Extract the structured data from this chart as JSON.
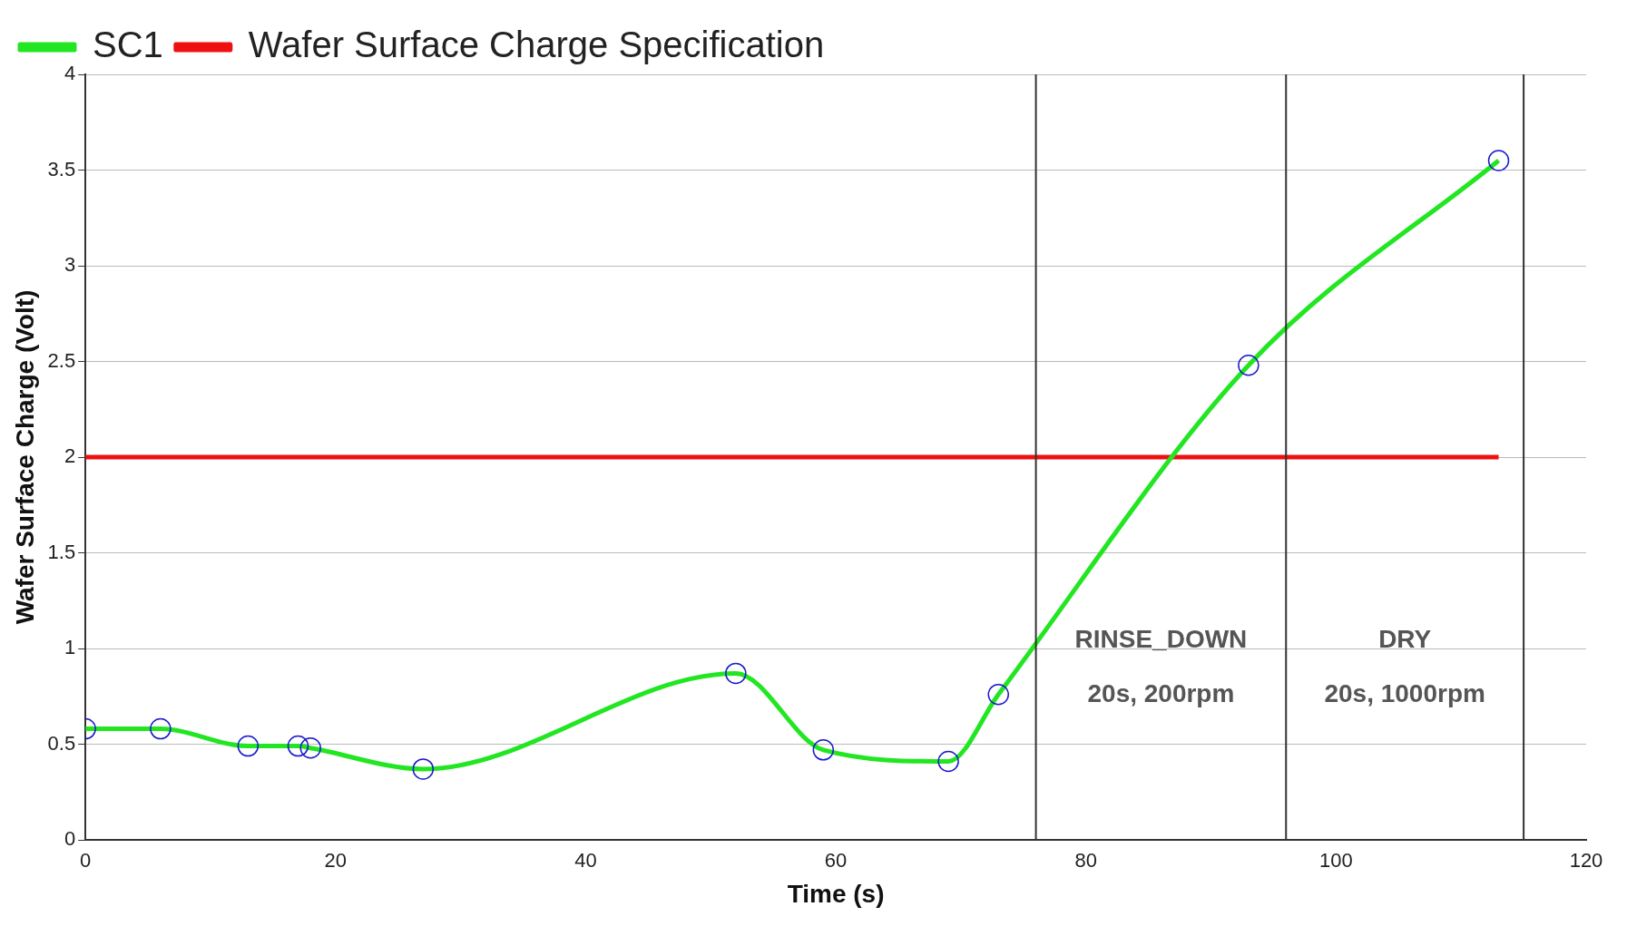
{
  "chart_data": {
    "type": "line",
    "xlabel": "Time (s)",
    "ylabel": "Wafer Surface Charge (Volt)",
    "xlim": [
      0,
      120
    ],
    "xticks": [
      0,
      20,
      40,
      60,
      80,
      100,
      120
    ],
    "ylim": [
      0,
      4
    ],
    "yticks": [
      0,
      0.5,
      1,
      1.5,
      2,
      2.5,
      3,
      3.5,
      4
    ],
    "grid": "y",
    "legend": "top left",
    "series": [
      {
        "name": "SC1",
        "color": "#22e622",
        "marker": "circle",
        "x": [
          0,
          6,
          13,
          17,
          18,
          27,
          52,
          59,
          69,
          73,
          93,
          113
        ],
        "values": [
          0.58,
          0.58,
          0.49,
          0.49,
          0.48,
          0.37,
          0.87,
          0.47,
          0.41,
          0.76,
          2.48,
          3.55
        ]
      },
      {
        "name": "Wafer Surface Charge Specification",
        "color": "#ee1111",
        "marker": "none",
        "x": [
          0,
          113
        ],
        "values": [
          2,
          2
        ]
      }
    ],
    "ref_lines": [
      {
        "axis": "x",
        "value": 76,
        "color": "#333333"
      },
      {
        "axis": "x",
        "value": 96,
        "color": "#333333"
      },
      {
        "axis": "x",
        "value": 115,
        "color": "#333333"
      }
    ],
    "annotations": [
      "RINSE_DOWN",
      "20s, 200rpm",
      "DRY",
      "20s, 1000rpm"
    ]
  }
}
